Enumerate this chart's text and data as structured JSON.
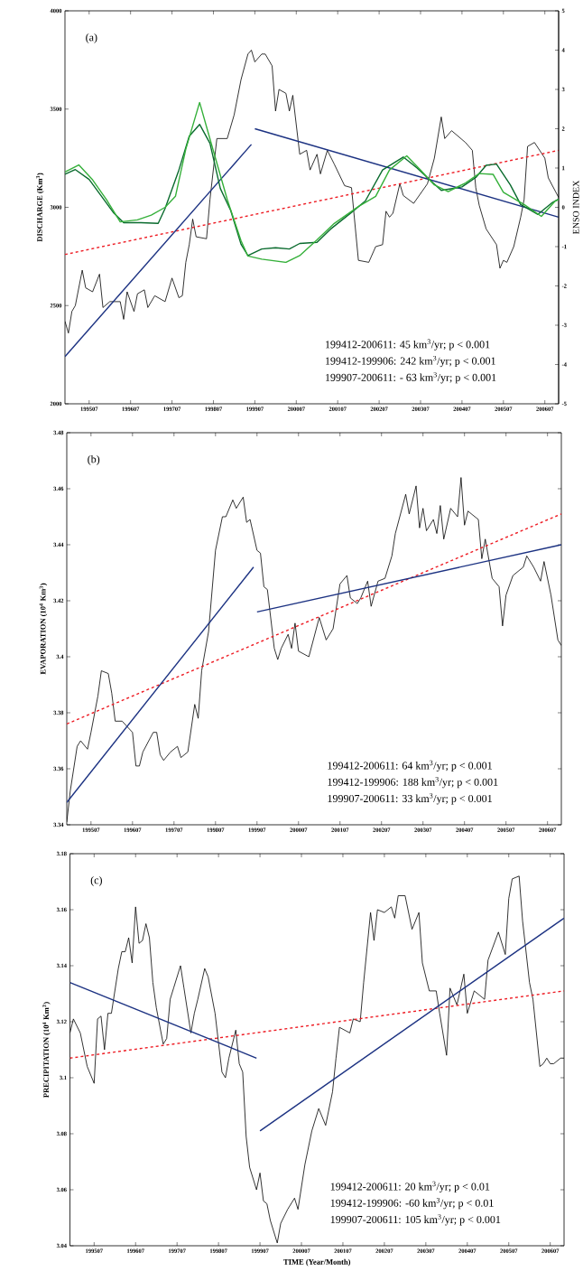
{
  "chart_data": [
    {
      "type": "line",
      "ylabel": "DISCHARGE (Km$^{3}$)",
      "y2label": "ENSO INDEX",
      "marker": "none",
      "xlim": [
        "1994-12",
        "2006-11"
      ],
      "ylim": [
        2000,
        4000
      ],
      "y2lim": [
        -5,
        5
      ],
      "xticks": [
        {
          "value": "1995-07",
          "label": "199507"
        },
        {
          "value": "1996-07",
          "label": "199607"
        },
        {
          "value": "1997-07",
          "label": "199707"
        },
        {
          "value": "1998-07",
          "label": "199807"
        },
        {
          "value": "1999-07",
          "label": "199907"
        },
        {
          "value": "2000-07",
          "label": "200007"
        },
        {
          "value": "2001-07",
          "label": "200107"
        },
        {
          "value": "2002-07",
          "label": "200207"
        },
        {
          "value": "2003-07",
          "label": "200307"
        },
        {
          "value": "2004-07",
          "label": "200407"
        },
        {
          "value": "2005-07",
          "label": "200507"
        },
        {
          "value": "2006-07",
          "label": "200607"
        }
      ],
      "yticks": [
        2000,
        2500,
        3000,
        3500,
        4000
      ],
      "y2ticks": [
        -5,
        -4,
        -3,
        -2,
        -1,
        0,
        1,
        2,
        3,
        4,
        5
      ],
      "annotations": [
        "(a)",
        "199412-200611: 45 km$^{3}$/yr; p < 0.001",
        "199412-199906: 242 km$^{3}$/yr; p < 0.001",
        "199907-200611: - 63 km$^{3}$/yr; p < 0.001"
      ],
      "series": [
        {
          "color": "#000000",
          "x": [
            "1994-12",
            "1995-01",
            "1995-02",
            "1995-03",
            "1995-05",
            "1995-06",
            "1995-08",
            "1995-10",
            "1995-11",
            "1996-01",
            "1996-04",
            "1996-05",
            "1996-06",
            "1996-08",
            "1996-09",
            "1996-11",
            "1996-12",
            "1997-02",
            "1997-05",
            "1997-07",
            "1997-09",
            "1997-10",
            "1997-11",
            "1997-12",
            "1998-01",
            "1998-02",
            "1998-05",
            "1998-06",
            "1998-08",
            "1998-11",
            "1999-01",
            "1999-03",
            "1999-05",
            "1999-06",
            "1999-07",
            "1999-09",
            "1999-10",
            "1999-12",
            "2000-01",
            "2000-02",
            "2000-04",
            "2000-05",
            "2000-06",
            "2000-08",
            "2000-10",
            "2000-11",
            "2001-01",
            "2001-02",
            "2001-04",
            "2001-06",
            "2001-09",
            "2001-11",
            "2002-01",
            "2002-04",
            "2002-06",
            "2002-08",
            "2002-09",
            "2002-10",
            "2002-11",
            "2003-01",
            "2003-02",
            "2003-05",
            "2003-09",
            "2003-11",
            "2004-01",
            "2004-02",
            "2004-04",
            "2004-08",
            "2004-10",
            "2004-11",
            "2004-12",
            "2005-02",
            "2005-05",
            "2005-06",
            "2005-07",
            "2005-08",
            "2005-10",
            "2005-12",
            "2006-01",
            "2006-02",
            "2006-04",
            "2006-07",
            "2006-08",
            "2006-11"
          ],
          "values": [
            2420,
            2360,
            2470,
            2500,
            2680,
            2590,
            2570,
            2660,
            2490,
            2520,
            2520,
            2430,
            2570,
            2470,
            2560,
            2580,
            2490,
            2550,
            2520,
            2640,
            2540,
            2550,
            2720,
            2810,
            2940,
            2850,
            2840,
            3040,
            3350,
            3350,
            3470,
            3650,
            3780,
            3800,
            3740,
            3780,
            3780,
            3720,
            3490,
            3600,
            3580,
            3490,
            3570,
            3270,
            3290,
            3190,
            3270,
            3170,
            3290,
            3220,
            3110,
            3100,
            2730,
            2720,
            2800,
            2810,
            2980,
            2950,
            2970,
            3120,
            3060,
            3020,
            3120,
            3250,
            3460,
            3350,
            3390,
            3330,
            3290,
            3100,
            3010,
            2890,
            2810,
            2690,
            2730,
            2720,
            2800,
            2950,
            3040,
            3310,
            3330,
            3250,
            3150,
            3050
          ]
        },
        {
          "axis": "y2",
          "color": "#0a6b2e",
          "x": [
            "1994-12",
            "1995-03",
            "1995-07",
            "1996-02",
            "1996-05",
            "1996-10",
            "1997-03",
            "1997-05",
            "1997-09",
            "1997-12",
            "1998-03",
            "1998-06",
            "1998-09",
            "1998-12",
            "1999-03",
            "1999-05",
            "1999-09",
            "2000-01",
            "2000-05",
            "2000-08",
            "2001-01",
            "2001-05",
            "2001-11",
            "2002-03",
            "2002-08",
            "2003-02",
            "2003-06",
            "2003-10",
            "2004-01",
            "2004-07",
            "2004-11",
            "2005-02",
            "2005-05",
            "2005-09",
            "2005-12",
            "2006-05",
            "2006-09",
            "2006-11"
          ],
          "values": [
            0.84,
            0.96,
            0.71,
            -0.13,
            -0.39,
            -0.39,
            -0.41,
            -0.03,
            0.95,
            1.81,
            2.11,
            1.63,
            0.48,
            -0.08,
            -0.94,
            -1.23,
            -1.06,
            -1.03,
            -1.06,
            -0.92,
            -0.89,
            -0.55,
            -0.13,
            0.16,
            0.95,
            1.28,
            1.0,
            0.67,
            0.43,
            0.52,
            0.76,
            1.07,
            1.1,
            0.57,
            0.07,
            -0.18,
            0.11,
            0.21
          ]
        },
        {
          "axis": "y2",
          "color": "#35b03a",
          "x": [
            "1994-12",
            "1995-04",
            "1995-08",
            "1995-12",
            "1996-04",
            "1996-09",
            "1997-01",
            "1997-05",
            "1997-08",
            "1997-11",
            "1998-03",
            "1998-07",
            "1998-11",
            "1999-03",
            "1999-05",
            "1999-09",
            "2000-04",
            "2000-08",
            "2001-01",
            "2001-06",
            "2002-01",
            "2002-06",
            "2002-10",
            "2003-03",
            "2003-07",
            "2003-11",
            "2004-03",
            "2004-08",
            "2004-12",
            "2005-04",
            "2005-07",
            "2006-01",
            "2006-06",
            "2006-10",
            "2006-11"
          ],
          "values": [
            0.9,
            1.08,
            0.7,
            0.2,
            -0.37,
            -0.32,
            -0.2,
            0.0,
            0.28,
            1.48,
            2.67,
            1.43,
            0.2,
            -0.85,
            -1.24,
            -1.32,
            -1.4,
            -1.23,
            -0.83,
            -0.41,
            0.02,
            0.28,
            0.95,
            1.31,
            0.95,
            0.57,
            0.4,
            0.62,
            0.86,
            0.84,
            0.38,
            0.07,
            -0.23,
            0.16,
            0.2
          ]
        },
        {
          "color": "#ee1c24",
          "line_style": "dashed",
          "x": [
            "1994-12",
            "2006-11"
          ],
          "values": [
            2760,
            3290
          ]
        },
        {
          "color": "#1c3282",
          "x": [
            "1994-12",
            "1999-06"
          ],
          "values": [
            2240,
            3320
          ]
        },
        {
          "color": "#1c3282",
          "x": [
            "1999-07",
            "2006-11"
          ],
          "values": [
            3400,
            2950
          ]
        }
      ]
    },
    {
      "type": "line",
      "ylabel": "EVAPORATION (10$^{4}$ Km$^{3}$)",
      "marker": "none",
      "xlim": [
        "1994-12",
        "2006-11"
      ],
      "ylim": [
        3.34,
        3.48
      ],
      "xticks": [
        {
          "value": "1995-07",
          "label": "199507"
        },
        {
          "value": "1996-07",
          "label": "199607"
        },
        {
          "value": "1997-07",
          "label": "199707"
        },
        {
          "value": "1998-07",
          "label": "199807"
        },
        {
          "value": "1999-07",
          "label": "199907"
        },
        {
          "value": "2000-07",
          "label": "200007"
        },
        {
          "value": "2001-07",
          "label": "200107"
        },
        {
          "value": "2002-07",
          "label": "200207"
        },
        {
          "value": "2003-07",
          "label": "200307"
        },
        {
          "value": "2004-07",
          "label": "200407"
        },
        {
          "value": "2005-07",
          "label": "200507"
        },
        {
          "value": "2006-07",
          "label": "200607"
        }
      ],
      "yticks": [
        3.34,
        3.36,
        3.38,
        3.4,
        3.42,
        3.44,
        3.46,
        3.48
      ],
      "annotations": [
        "(b)",
        "199412-200611: 64 km$^{3}$/yr; p < 0.001",
        "199412-199906: 188 km$^{3}$/yr; p < 0.001",
        "199907-200611: 33 km$^{3}$/yr; p < 0.001"
      ],
      "series": [
        {
          "color": "#000000",
          "x": [
            "1994-12",
            "1995-01",
            "1995-03",
            "1995-04",
            "1995-06",
            "1995-07",
            "1995-09",
            "1995-10",
            "1995-12",
            "1996-01",
            "1996-02",
            "1996-04",
            "1996-07",
            "1996-08",
            "1996-09",
            "1996-10",
            "1997-01",
            "1997-02",
            "1997-03",
            "1997-04",
            "1997-06",
            "1997-08",
            "1997-09",
            "1997-11",
            "1998-01",
            "1998-02",
            "1998-03",
            "1998-05",
            "1998-07",
            "1998-09",
            "1998-10",
            "1998-12",
            "1999-01",
            "1999-03",
            "1999-04",
            "1999-05",
            "1999-07",
            "1999-08",
            "1999-09",
            "1999-10",
            "1999-12",
            "2000-01",
            "2000-02",
            "2000-04",
            "2000-05",
            "2000-06",
            "2000-07",
            "2000-10",
            "2001-01",
            "2001-03",
            "2001-05",
            "2001-07",
            "2001-09",
            "2001-10",
            "2001-12",
            "2002-01",
            "2002-03",
            "2002-04",
            "2002-06",
            "2002-08",
            "2002-10",
            "2002-11",
            "2003-02",
            "2003-03",
            "2003-05",
            "2003-06",
            "2003-07",
            "2003-08",
            "2003-10",
            "2003-11",
            "2003-12",
            "2004-01",
            "2004-03",
            "2004-05",
            "2004-06",
            "2004-07",
            "2004-08",
            "2004-11",
            "2004-12",
            "2005-01",
            "2005-03",
            "2005-05",
            "2005-06",
            "2005-07",
            "2005-09",
            "2005-12",
            "2006-01",
            "2006-03",
            "2006-05",
            "2006-06",
            "2006-08",
            "2006-10",
            "2006-11"
          ],
          "values": [
            3.341,
            3.352,
            3.368,
            3.37,
            3.367,
            3.373,
            3.386,
            3.395,
            3.394,
            3.387,
            3.377,
            3.377,
            3.373,
            3.361,
            3.361,
            3.366,
            3.373,
            3.373,
            3.365,
            3.363,
            3.366,
            3.368,
            3.364,
            3.366,
            3.383,
            3.378,
            3.395,
            3.409,
            3.438,
            3.45,
            3.45,
            3.456,
            3.453,
            3.457,
            3.448,
            3.449,
            3.438,
            3.437,
            3.425,
            3.424,
            3.403,
            3.399,
            3.403,
            3.408,
            3.403,
            3.412,
            3.402,
            3.4,
            3.414,
            3.406,
            3.41,
            3.426,
            3.429,
            3.421,
            3.419,
            3.421,
            3.427,
            3.418,
            3.427,
            3.428,
            3.436,
            3.444,
            3.458,
            3.451,
            3.461,
            3.446,
            3.453,
            3.445,
            3.449,
            3.444,
            3.454,
            3.442,
            3.453,
            3.45,
            3.464,
            3.447,
            3.452,
            3.449,
            3.435,
            3.442,
            3.428,
            3.425,
            3.411,
            3.422,
            3.429,
            3.432,
            3.436,
            3.432,
            3.427,
            3.434,
            3.422,
            3.406,
            3.404
          ]
        },
        {
          "color": "#ee1c24",
          "line_style": "dashed",
          "x": [
            "1994-12",
            "2006-11"
          ],
          "values": [
            3.376,
            3.451
          ]
        },
        {
          "color": "#1c3282",
          "x": [
            "1994-12",
            "1999-06"
          ],
          "values": [
            3.348,
            3.432
          ]
        },
        {
          "color": "#1c3282",
          "x": [
            "1999-07",
            "2006-11"
          ],
          "values": [
            3.416,
            3.44
          ]
        }
      ]
    },
    {
      "type": "line",
      "xlabel": "TIME (Year/Month)",
      "ylabel": "PRECIPITATION (10$^{4}$ Km$^{3}$)",
      "marker": "none",
      "xlim": [
        "1994-12",
        "2006-11"
      ],
      "ylim": [
        3.04,
        3.18
      ],
      "xticks": [
        {
          "value": "1995-07",
          "label": "199507"
        },
        {
          "value": "1996-07",
          "label": "199607"
        },
        {
          "value": "1997-07",
          "label": "199707"
        },
        {
          "value": "1998-07",
          "label": "199807"
        },
        {
          "value": "1999-07",
          "label": "199907"
        },
        {
          "value": "2000-07",
          "label": "200007"
        },
        {
          "value": "2001-07",
          "label": "200107"
        },
        {
          "value": "2002-07",
          "label": "200207"
        },
        {
          "value": "2003-07",
          "label": "200307"
        },
        {
          "value": "2004-07",
          "label": "200407"
        },
        {
          "value": "2005-07",
          "label": "200507"
        },
        {
          "value": "2006-07",
          "label": "200607"
        }
      ],
      "yticks": [
        3.04,
        3.06,
        3.08,
        3.1,
        3.12,
        3.14,
        3.16,
        3.18
      ],
      "annotations": [
        "(c)",
        "199412-200611: 20 km$^{3}$/yr; p < 0.01",
        "199412-199906: -60 km$^{3}$/yr; p < 0.01",
        "199907-200611: 105 km$^{3}$/yr; p < 0.001"
      ],
      "series": [
        {
          "color": "#000000",
          "x": [
            "1994-12",
            "1995-01",
            "1995-03",
            "1995-05",
            "1995-07",
            "1995-08",
            "1995-09",
            "1995-10",
            "1995-11",
            "1995-12",
            "1996-02",
            "1996-03",
            "1996-04",
            "1996-05",
            "1996-06",
            "1996-07",
            "1996-08",
            "1996-09",
            "1996-10",
            "1996-11",
            "1996-12",
            "1997-01",
            "1997-03",
            "1997-04",
            "1997-05",
            "1997-06",
            "1997-08",
            "1997-09",
            "1997-11",
            "1997-12",
            "1998-01",
            "1998-03",
            "1998-04",
            "1998-06",
            "1998-08",
            "1998-09",
            "1998-10",
            "1998-12",
            "1999-01",
            "1999-02",
            "1999-03",
            "1999-04",
            "1999-06",
            "1999-07",
            "1999-08",
            "1999-09",
            "1999-10",
            "1999-12",
            "2000-01",
            "2000-03",
            "2000-05",
            "2000-06",
            "2000-08",
            "2000-10",
            "2000-12",
            "2001-02",
            "2001-04",
            "2001-05",
            "2001-06",
            "2001-09",
            "2001-10",
            "2001-12",
            "2002-01",
            "2002-03",
            "2002-04",
            "2002-05",
            "2002-07",
            "2002-09",
            "2002-10",
            "2002-11",
            "2003-01",
            "2003-03",
            "2003-05",
            "2003-06",
            "2003-08",
            "2003-10",
            "2003-11",
            "2004-01",
            "2004-02",
            "2004-04",
            "2004-06",
            "2004-07",
            "2004-09",
            "2004-12",
            "2005-01",
            "2005-04",
            "2005-06",
            "2005-07",
            "2005-08",
            "2005-10",
            "2005-11",
            "2006-01",
            "2006-02",
            "2006-04",
            "2006-05",
            "2006-06",
            "2006-07",
            "2006-08",
            "2006-10",
            "2006-11"
          ],
          "values": [
            3.116,
            3.121,
            3.116,
            3.104,
            3.098,
            3.121,
            3.122,
            3.11,
            3.123,
            3.123,
            3.139,
            3.145,
            3.145,
            3.15,
            3.141,
            3.161,
            3.148,
            3.149,
            3.155,
            3.15,
            3.134,
            3.125,
            3.112,
            3.114,
            3.128,
            3.132,
            3.14,
            3.132,
            3.116,
            3.123,
            3.128,
            3.139,
            3.136,
            3.123,
            3.102,
            3.1,
            3.107,
            3.117,
            3.105,
            3.102,
            3.079,
            3.068,
            3.06,
            3.066,
            3.056,
            3.055,
            3.049,
            3.041,
            3.048,
            3.053,
            3.057,
            3.053,
            3.069,
            3.081,
            3.089,
            3.083,
            3.095,
            3.107,
            3.118,
            3.116,
            3.121,
            3.12,
            3.134,
            3.159,
            3.149,
            3.16,
            3.159,
            3.161,
            3.157,
            3.165,
            3.165,
            3.153,
            3.159,
            3.141,
            3.131,
            3.131,
            3.123,
            3.108,
            3.132,
            3.126,
            3.137,
            3.123,
            3.131,
            3.128,
            3.142,
            3.152,
            3.144,
            3.164,
            3.171,
            3.172,
            3.156,
            3.134,
            3.128,
            3.104,
            3.105,
            3.107,
            3.105,
            3.105,
            3.107,
            3.107
          ]
        },
        {
          "color": "#ee1c24",
          "line_style": "dashed",
          "x": [
            "1994-12",
            "2006-11"
          ],
          "values": [
            3.107,
            3.131
          ]
        },
        {
          "color": "#1c3282",
          "x": [
            "1994-12",
            "1999-06"
          ],
          "values": [
            3.134,
            3.107
          ]
        },
        {
          "color": "#1c3282",
          "x": [
            "1999-07",
            "2006-11"
          ],
          "values": [
            3.081,
            3.157
          ]
        }
      ]
    }
  ]
}
